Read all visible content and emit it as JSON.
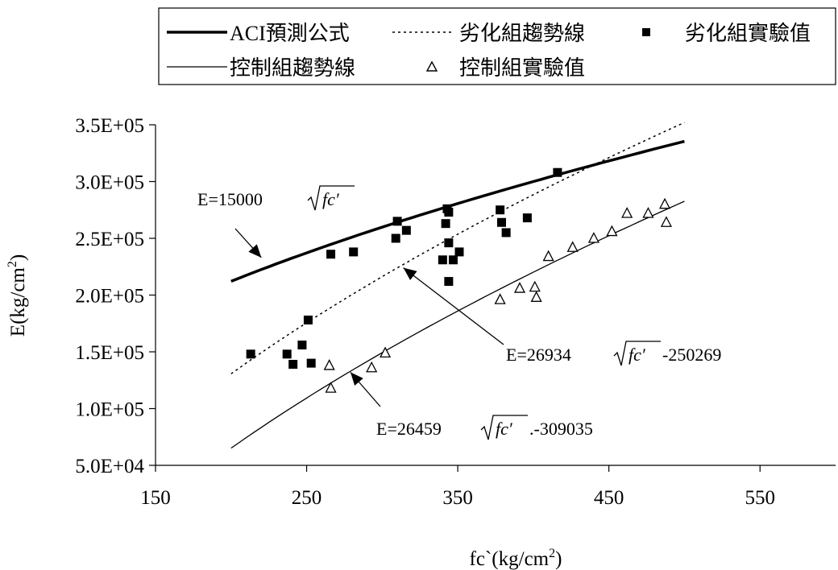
{
  "chart_data": {
    "type": "scatter",
    "xlabel": {
      "base": "fc`(kg/cm",
      "sup": "2",
      "tail": ")"
    },
    "ylabel": {
      "base": "E(kg/cm",
      "sup": "2",
      "tail": ")"
    },
    "xlim": [
      150,
      600
    ],
    "ylim": [
      50000,
      350000
    ],
    "xticks": [
      150,
      250,
      350,
      450,
      550
    ],
    "yticks": [
      50000,
      100000,
      150000,
      200000,
      250000,
      300000,
      350000
    ],
    "ytick_labels": [
      "5.0E+04",
      "1.0E+05",
      "1.5E+05",
      "2.0E+05",
      "2.5E+05",
      "3.0E+05",
      "3.5E+05"
    ],
    "grid": false,
    "legend_position": "top",
    "series": [
      {
        "name": "ACI預測公式",
        "kind": "line",
        "style": "thick",
        "coef": 15000,
        "offset": 0,
        "xrange": [
          200,
          500
        ]
      },
      {
        "name": "劣化組趨勢線",
        "kind": "line",
        "style": "dotted",
        "coef": 26934,
        "offset": -250269,
        "xrange": [
          200,
          500
        ]
      },
      {
        "name": "劣化組實驗值",
        "kind": "points",
        "marker": "square",
        "points": [
          [
            213,
            148000
          ],
          [
            237,
            148000
          ],
          [
            241,
            139000
          ],
          [
            247,
            156000
          ],
          [
            251,
            178000
          ],
          [
            253,
            140000
          ],
          [
            266,
            236000
          ],
          [
            281,
            238000
          ],
          [
            309,
            250000
          ],
          [
            310,
            265000
          ],
          [
            316,
            257000
          ],
          [
            340,
            231000
          ],
          [
            342,
            263000
          ],
          [
            343,
            276000
          ],
          [
            344,
            273000
          ],
          [
            344,
            212000
          ],
          [
            344,
            246000
          ],
          [
            347,
            231000
          ],
          [
            351,
            238000
          ],
          [
            378,
            275000
          ],
          [
            379,
            264000
          ],
          [
            382,
            255000
          ],
          [
            396,
            268000
          ],
          [
            416,
            308000
          ]
        ]
      },
      {
        "name": "控制組趨勢線",
        "kind": "line",
        "style": "thin",
        "coef": 26459,
        "offset": -309035,
        "xrange": [
          200,
          500
        ]
      },
      {
        "name": "控制組實驗值",
        "kind": "points",
        "marker": "triangle",
        "points": [
          [
            265,
            138000
          ],
          [
            266,
            118000
          ],
          [
            293,
            136000
          ],
          [
            302,
            149000
          ],
          [
            378,
            196000
          ],
          [
            391,
            206000
          ],
          [
            401,
            207000
          ],
          [
            402,
            198000
          ],
          [
            410,
            234000
          ],
          [
            426,
            242000
          ],
          [
            440,
            250000
          ],
          [
            452,
            256000
          ],
          [
            462,
            272000
          ],
          [
            476,
            272000
          ],
          [
            487,
            280000
          ],
          [
            488,
            264000
          ]
        ]
      }
    ],
    "annotations": [
      {
        "label": "E=15000",
        "tail": "",
        "target": [
          220,
          233000
        ]
      },
      {
        "label": "E=26934",
        "tail": " -250269",
        "target": [
          314,
          224000
        ]
      },
      {
        "label": "E=26459",
        "tail": " .-309035",
        "target": [
          279,
          132000
        ]
      }
    ],
    "sqrt_symbol_text": "fc′"
  }
}
